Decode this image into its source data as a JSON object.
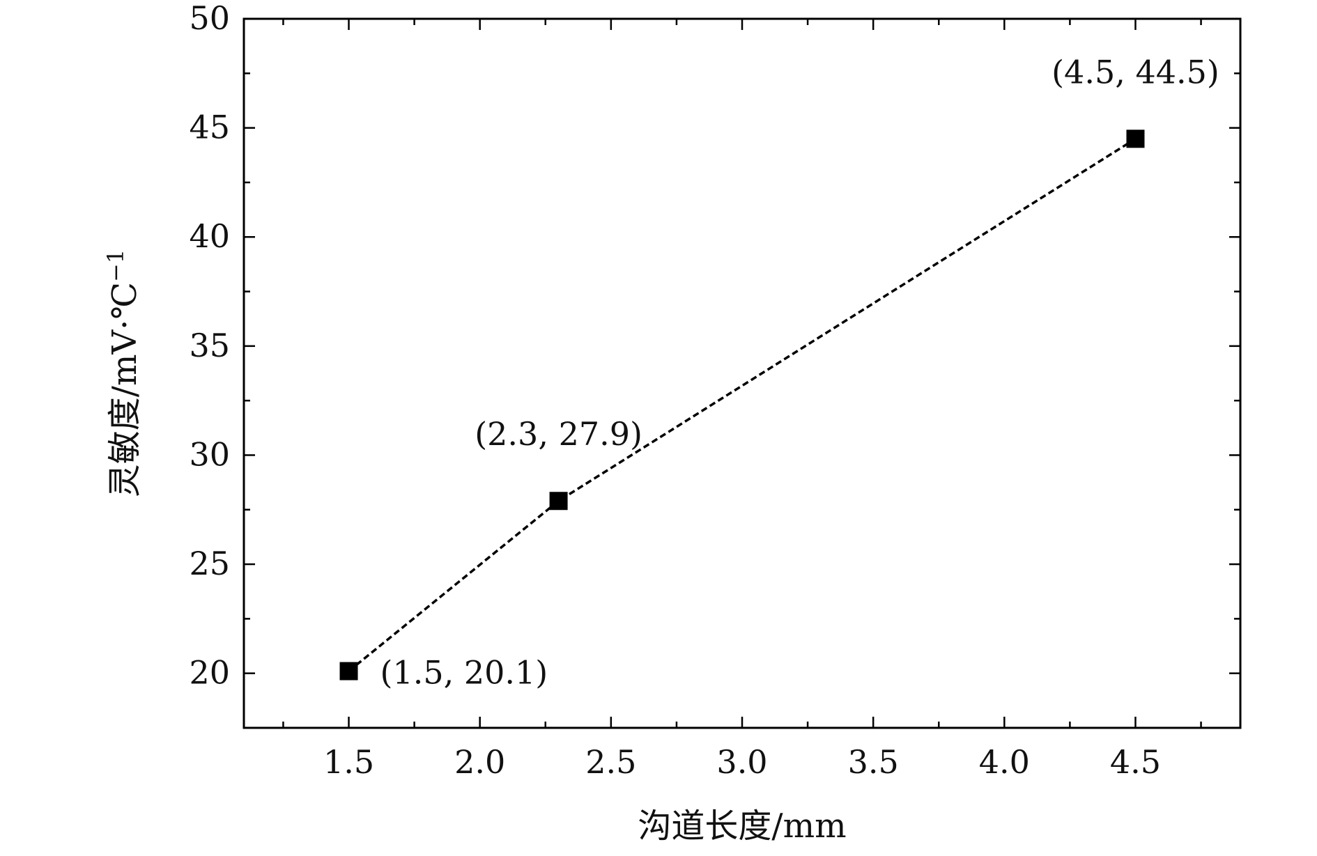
{
  "chart_data": {
    "type": "line",
    "title": "",
    "xlabel": "沟道长度/mm",
    "ylabel": "灵敏度/mV·℃",
    "ylabel_superscript": "−1",
    "xlim": [
      1.1,
      4.9
    ],
    "ylim": [
      17.5,
      50
    ],
    "xticks": [
      1.5,
      2.0,
      2.5,
      3.0,
      3.5,
      4.0,
      4.5
    ],
    "xtick_labels": [
      "1.5",
      "2.0",
      "2.5",
      "3.0",
      "3.5",
      "4.0",
      "4.5"
    ],
    "yticks": [
      20,
      25,
      30,
      35,
      40,
      45,
      50
    ],
    "ytick_labels": [
      "20",
      "25",
      "30",
      "35",
      "40",
      "45",
      "50"
    ],
    "grid": false,
    "line_style": "dashed",
    "marker": "square",
    "color": "#000000",
    "series": [
      {
        "x": [
          1.5,
          2.3,
          4.5
        ],
        "y": [
          20.1,
          27.9,
          44.5
        ],
        "labels": [
          "(1.5, 20.1)",
          "(2.3, 27.9)",
          "(4.5, 44.5)"
        ]
      }
    ]
  }
}
